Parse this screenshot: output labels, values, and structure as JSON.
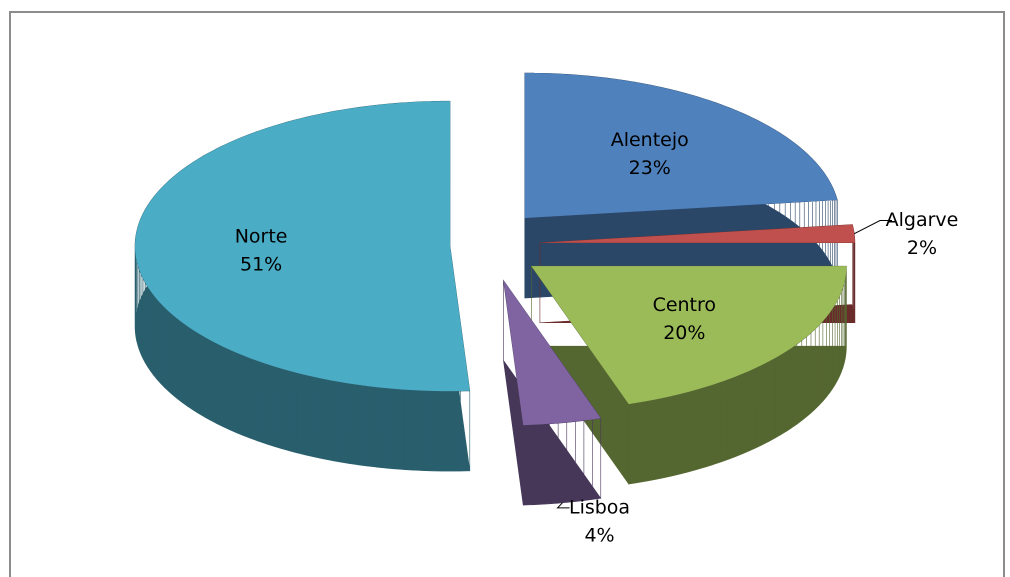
{
  "chart_data": {
    "type": "pie",
    "three_d": true,
    "exploded": true,
    "categories": [
      "Alentejo",
      "Algarve",
      "Centro",
      "Lisboa",
      "Norte"
    ],
    "values": [
      23,
      2,
      20,
      4,
      51
    ],
    "value_labels": [
      "23%",
      "2%",
      "20%",
      "4%",
      "51%"
    ],
    "colors": [
      "#4f81bd",
      "#c0504d",
      "#9bbb59",
      "#8064a2",
      "#4bacc6"
    ]
  }
}
